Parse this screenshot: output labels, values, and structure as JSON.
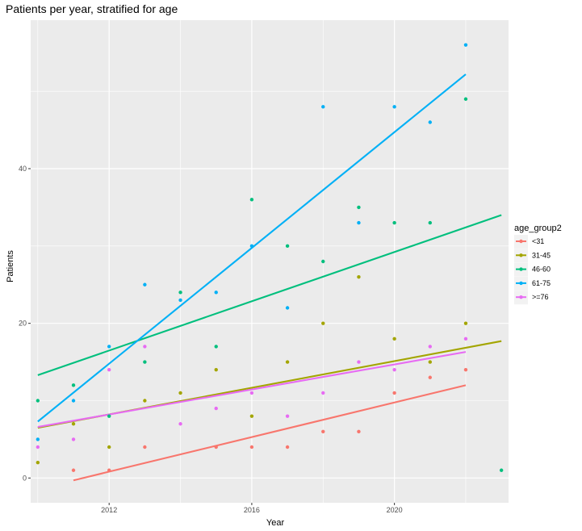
{
  "chart_data": {
    "type": "scatter",
    "title": "Patients per year, stratified for age",
    "xlabel": "Year",
    "ylabel": "Patients",
    "xlim": [
      2009.8,
      2023.2
    ],
    "ylim": [
      -3.2,
      59.2
    ],
    "x_ticks": [
      2012,
      2016,
      2020
    ],
    "y_ticks": [
      0,
      20,
      40
    ],
    "grid": true,
    "legend_title": "age_group2",
    "legend_position": "right",
    "series": [
      {
        "name": "<31",
        "color": "#F8766D",
        "points": [
          [
            2011,
            1
          ],
          [
            2012,
            1
          ],
          [
            2013,
            4
          ],
          [
            2015,
            4
          ],
          [
            2016,
            4
          ],
          [
            2017,
            4
          ],
          [
            2018,
            6
          ],
          [
            2019,
            6
          ],
          [
            2020,
            11
          ],
          [
            2021,
            13
          ],
          [
            2022,
            14
          ]
        ],
        "fit": [
          [
            2011,
            -0.3
          ],
          [
            2022,
            12.0
          ]
        ]
      },
      {
        "name": "31-45",
        "color": "#A3A500",
        "points": [
          [
            2010,
            2
          ],
          [
            2011,
            7
          ],
          [
            2012,
            4
          ],
          [
            2013,
            10
          ],
          [
            2014,
            11
          ],
          [
            2015,
            14
          ],
          [
            2016,
            8
          ],
          [
            2017,
            15
          ],
          [
            2018,
            20
          ],
          [
            2019,
            26
          ],
          [
            2020,
            18
          ],
          [
            2021,
            15
          ],
          [
            2022,
            20
          ]
        ],
        "fit": [
          [
            2010,
            6.5
          ],
          [
            2023,
            17.7
          ]
        ]
      },
      {
        "name": "46-60",
        "color": "#00BF7D",
        "points": [
          [
            2010,
            10
          ],
          [
            2011,
            12
          ],
          [
            2012,
            8
          ],
          [
            2013,
            15
          ],
          [
            2014,
            24
          ],
          [
            2015,
            17
          ],
          [
            2016,
            36
          ],
          [
            2017,
            30
          ],
          [
            2018,
            28
          ],
          [
            2019,
            35
          ],
          [
            2020,
            33
          ],
          [
            2021,
            33
          ],
          [
            2022,
            49
          ],
          [
            2023,
            1
          ]
        ],
        "fit": [
          [
            2010,
            13.3
          ],
          [
            2023,
            34.0
          ]
        ]
      },
      {
        "name": "61-75",
        "color": "#00B0F6",
        "points": [
          [
            2010,
            5
          ],
          [
            2011,
            10
          ],
          [
            2012,
            17
          ],
          [
            2013,
            25
          ],
          [
            2014,
            23
          ],
          [
            2015,
            24
          ],
          [
            2016,
            30
          ],
          [
            2017,
            22
          ],
          [
            2018,
            48
          ],
          [
            2019,
            33
          ],
          [
            2020,
            48
          ],
          [
            2021,
            46
          ],
          [
            2022,
            56
          ]
        ],
        "fit": [
          [
            2010,
            7.3
          ],
          [
            2022,
            52.2
          ]
        ]
      },
      {
        "name": ">=76",
        "color": "#E76BF3",
        "points": [
          [
            2010,
            4
          ],
          [
            2011,
            5
          ],
          [
            2012,
            14
          ],
          [
            2013,
            17
          ],
          [
            2014,
            7
          ],
          [
            2015,
            9
          ],
          [
            2016,
            11
          ],
          [
            2017,
            8
          ],
          [
            2018,
            11
          ],
          [
            2019,
            15
          ],
          [
            2020,
            14
          ],
          [
            2021,
            17
          ],
          [
            2022,
            18
          ]
        ],
        "fit": [
          [
            2010,
            6.6
          ],
          [
            2022,
            16.3
          ]
        ]
      }
    ]
  }
}
